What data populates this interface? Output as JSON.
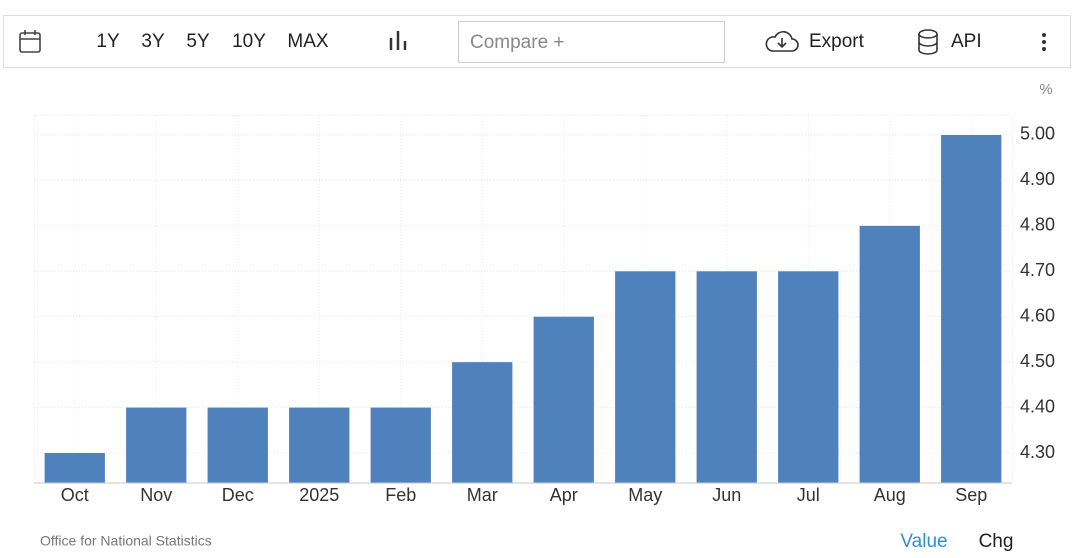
{
  "toolbar": {
    "ranges": [
      "1Y",
      "3Y",
      "5Y",
      "10Y",
      "MAX"
    ],
    "compare": "Compare +",
    "export": "Export",
    "api": "API"
  },
  "chart_data": {
    "type": "bar",
    "unit": "%",
    "categories": [
      "Oct",
      "Nov",
      "Dec",
      "2025",
      "Feb",
      "Mar",
      "Apr",
      "May",
      "Jun",
      "Jul",
      "Aug",
      "Sep"
    ],
    "values": [
      4.3,
      4.4,
      4.4,
      4.4,
      4.4,
      4.5,
      4.6,
      4.7,
      4.7,
      4.7,
      4.8,
      5.0
    ],
    "color": "#4f81bd",
    "ylim": [
      4.234,
      5.044
    ],
    "yticks": [
      {
        "value": 4.3,
        "label": "4.30"
      },
      {
        "value": 4.4,
        "label": "4.40"
      },
      {
        "value": 4.5,
        "label": "4.50"
      },
      {
        "value": 4.6,
        "label": "4.60"
      },
      {
        "value": 4.7,
        "label": "4.70"
      },
      {
        "value": 4.8,
        "label": "4.80"
      },
      {
        "value": 4.9,
        "label": "4.90"
      },
      {
        "value": 5.0,
        "label": "5.00"
      }
    ],
    "grid": true
  },
  "footer": {
    "source": "Office for National Statistics",
    "tabs": [
      "Value",
      "Chg"
    ]
  }
}
